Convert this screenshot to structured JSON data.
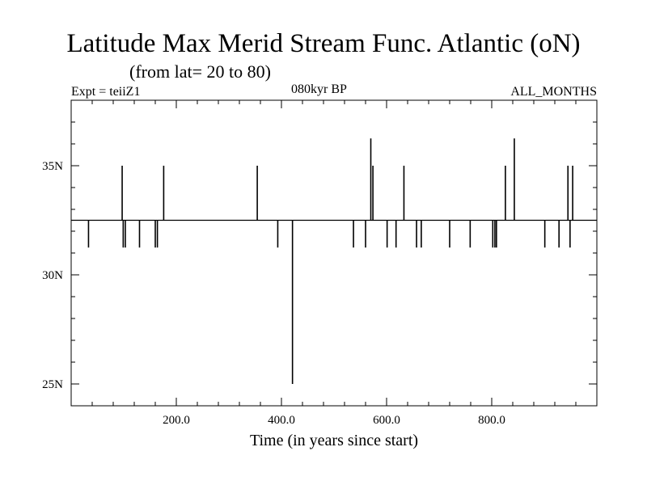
{
  "header": {
    "title": "Latitude Max Merid Stream Func. Atlantic (oN)",
    "subtitle": "(from lat= 20 to 80)",
    "expt": "Expt = teiiZ1",
    "time_label": "080kyr BP",
    "months": "ALL_MONTHS"
  },
  "chart_data": {
    "type": "line",
    "title": "Latitude Max Merid Stream Func. Atlantic (oN)",
    "xlabel": "Time (in years since start)",
    "ylabel": "",
    "xlim": [
      0,
      1000
    ],
    "ylim": [
      24,
      38
    ],
    "x_ticks": [
      {
        "value": 200,
        "label": "200.0"
      },
      {
        "value": 400,
        "label": "400.0"
      },
      {
        "value": 600,
        "label": "600.0"
      },
      {
        "value": 800,
        "label": "800.0"
      }
    ],
    "y_ticks": [
      {
        "value": 25,
        "label": "25N"
      },
      {
        "value": 30,
        "label": "30N"
      },
      {
        "value": 35,
        "label": "35N"
      }
    ],
    "baseline": 32.5,
    "series": [
      {
        "color": "#000000",
        "baseline": 32.5,
        "spikes": [
          {
            "x": 33,
            "y": 31.25
          },
          {
            "x": 97,
            "y": 35.0
          },
          {
            "x": 99,
            "y": 31.25
          },
          {
            "x": 103,
            "y": 31.25
          },
          {
            "x": 130,
            "y": 31.25
          },
          {
            "x": 160,
            "y": 31.25
          },
          {
            "x": 164,
            "y": 31.25
          },
          {
            "x": 176,
            "y": 35.0
          },
          {
            "x": 354,
            "y": 35.0
          },
          {
            "x": 393,
            "y": 31.25
          },
          {
            "x": 421,
            "y": 25.0
          },
          {
            "x": 537,
            "y": 31.25
          },
          {
            "x": 560,
            "y": 31.25
          },
          {
            "x": 570,
            "y": 36.25
          },
          {
            "x": 574,
            "y": 35.0
          },
          {
            "x": 601,
            "y": 31.25
          },
          {
            "x": 618,
            "y": 31.25
          },
          {
            "x": 633,
            "y": 35.0
          },
          {
            "x": 657,
            "y": 31.25
          },
          {
            "x": 666,
            "y": 31.25
          },
          {
            "x": 720,
            "y": 31.25
          },
          {
            "x": 759,
            "y": 31.25
          },
          {
            "x": 802,
            "y": 31.25
          },
          {
            "x": 806,
            "y": 31.25
          },
          {
            "x": 809,
            "y": 31.25
          },
          {
            "x": 826,
            "y": 35.0
          },
          {
            "x": 843,
            "y": 36.25
          },
          {
            "x": 901,
            "y": 31.25
          },
          {
            "x": 928,
            "y": 31.25
          },
          {
            "x": 945,
            "y": 35.0
          },
          {
            "x": 949,
            "y": 31.25
          },
          {
            "x": 954,
            "y": 35.0
          }
        ]
      }
    ]
  }
}
